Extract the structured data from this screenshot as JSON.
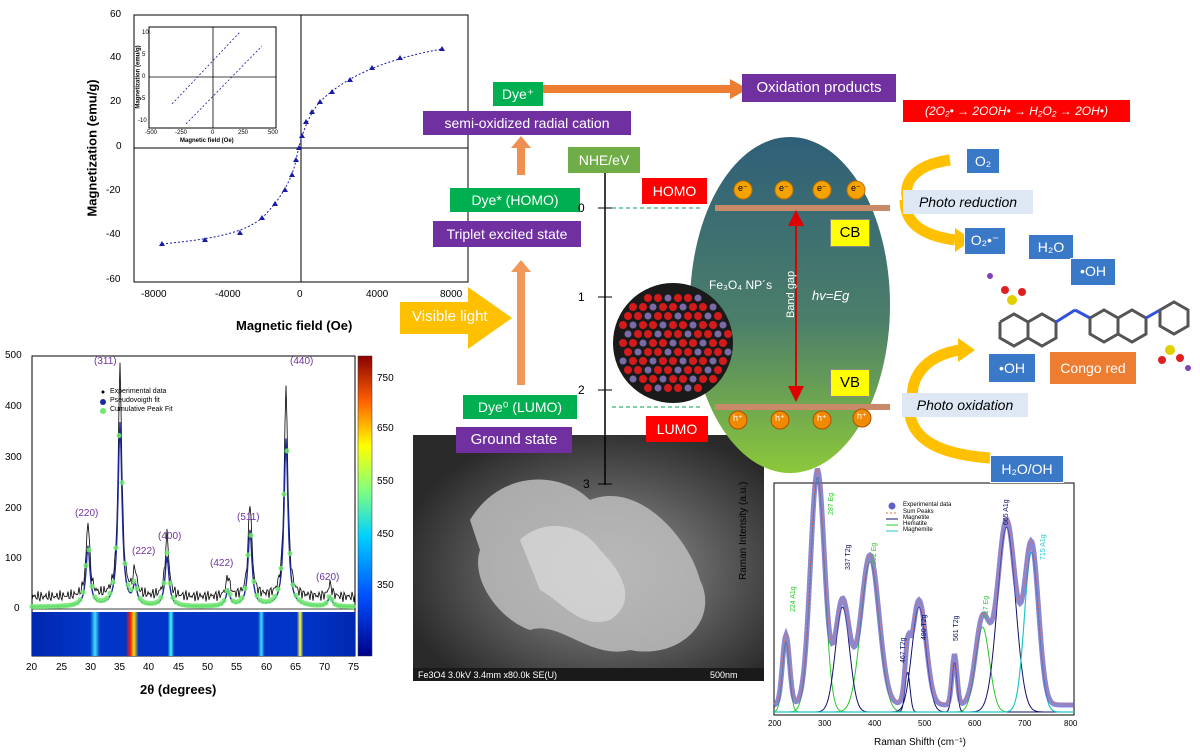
{
  "mag_panel": {
    "ylabel": "Magnetization (emu/g)",
    "xlabel": "Magnetic field (Oe)",
    "yticks": [
      "60",
      "40",
      "20",
      "0",
      "-20",
      "-40",
      "-60"
    ],
    "xticks": [
      "-8000",
      "-4000",
      "0",
      "4000",
      "8000"
    ],
    "inset": {
      "ylabel": "Magnetization (emu/g)",
      "xlabel": "Magnetic field (Oe)",
      "yticks": [
        "10",
        "5",
        "0",
        "-5",
        "-10"
      ],
      "xticks": [
        "-500",
        "-250",
        "0",
        "250",
        "500"
      ]
    }
  },
  "xrd_panel": {
    "xlabel": "2θ (degrees)",
    "yticks": [
      "500",
      "400",
      "300",
      "200",
      "100",
      "0"
    ],
    "xticks": [
      "20",
      "25",
      "30",
      "35",
      "40",
      "45",
      "50",
      "55",
      "60",
      "65",
      "70",
      "75"
    ],
    "colorbar_ticks": [
      "750",
      "650",
      "550",
      "450",
      "350"
    ],
    "legend": [
      "Experimental data",
      "Pseudovoigth fit",
      "Cumulative Peak Fit"
    ],
    "peak_labels": [
      "(311)",
      "(440)",
      "(220)",
      "(222)",
      "(400)",
      "(422)",
      "(511)",
      "(620)"
    ]
  },
  "sem": {
    "caption_left": "Fe3O4 3.0kV 3.4mm x80.0k SE(U)",
    "caption_right": "500nm"
  },
  "mechanism": {
    "dye_plus": "Dye⁺",
    "semi_oxidized": "semi-oxidized radial cation",
    "oxidation_products": "Oxidation products",
    "reaction": "(2O₂• → 2OOH• → H₂O₂ → 2OH•)",
    "nhe": "NHE/eV",
    "homo": "HOMO",
    "lumo": "LUMO",
    "dye_star": "Dye* (HOMO)",
    "triplet": "Triplet excited state",
    "visible_light": "Visible light",
    "dye_zero": "Dye⁰ (LUMO)",
    "ground_state": "Ground state",
    "scale": [
      "0",
      "1",
      "2",
      "3"
    ],
    "cb": "CB",
    "vb": "VB",
    "band_gap": "Band gap",
    "hv": "hv=Eg",
    "np_label": "Fe₃O₄ NP´s",
    "electron": "e⁻",
    "hole": "h⁺",
    "o2": "O₂",
    "photo_reduction": "Photo reduction",
    "o2_radical": "O₂•⁻",
    "h2o": "H₂O",
    "oh1": "•OH",
    "oh2": "•OH",
    "congo_red": "Congo red",
    "photo_oxidation": "Photo oxidation",
    "h2o_oh": "H₂O/OH"
  },
  "raman_panel": {
    "ylabel": "Raman Intensity (a.u.)",
    "xlabel": "Raman Shifth (cm⁻¹)",
    "xticks": [
      "200",
      "300",
      "400",
      "500",
      "600",
      "700",
      "800"
    ],
    "legend": [
      "Experimental data",
      "Sum Peaks",
      "Magnetite",
      "Hematite",
      "Maghemite"
    ],
    "peak_labels": [
      "224 A1g",
      "287 Eg",
      "337 T2g",
      "392 Eg",
      "467 T2g",
      "490 T2g",
      "561 T2g",
      "617 Eg",
      "665 A1g",
      "715 A1g"
    ]
  },
  "colors": {
    "purple": "#7030a0",
    "green": "#00b050",
    "red": "#ff0000",
    "blue": "#3a78c8",
    "orange": "#ed7d31",
    "yellow": "#ffc000"
  }
}
